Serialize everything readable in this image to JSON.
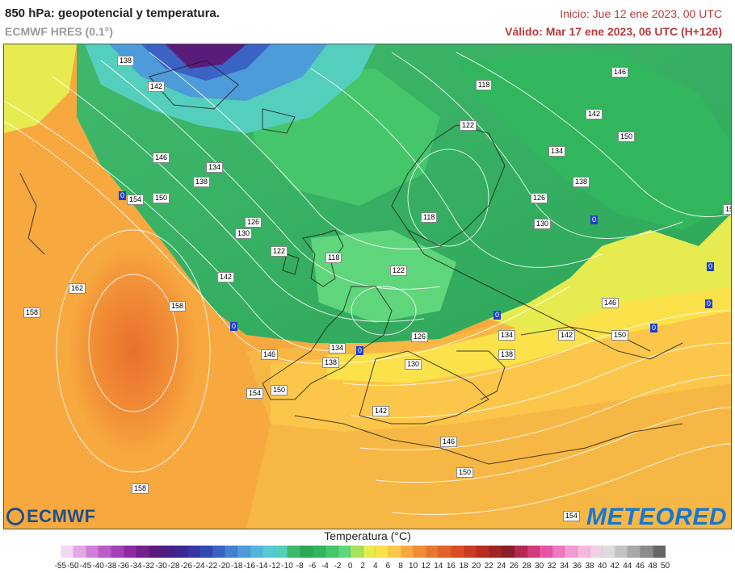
{
  "header": {
    "title": "850 hPa: geopotencial y temperatura.",
    "model": "ECMWF HRES (0.1°)",
    "init": "Inicio: Jue 12 ene 2023, 00 UTC",
    "valid": "Válido: Mar 17 ene 2023, 06 UTC (H+126)"
  },
  "logos": {
    "left": "ECMWF",
    "right": "METEORED"
  },
  "colorbar": {
    "title": "Temperatura (°C)",
    "ticks": [
      "-55",
      "-50",
      "-45",
      "-40",
      "-38",
      "-36",
      "-34",
      "-32",
      "-30",
      "-28",
      "-26",
      "-24",
      "-22",
      "-20",
      "-18",
      "-16",
      "-14",
      "-12",
      "-10",
      "-8",
      "-6",
      "-4",
      "-2",
      "0",
      "2",
      "4",
      "6",
      "8",
      "10",
      "12",
      "14",
      "16",
      "18",
      "20",
      "22",
      "24",
      "26",
      "28",
      "30",
      "32",
      "34",
      "36",
      "38",
      "40",
      "42",
      "44",
      "46",
      "48",
      "50"
    ],
    "colors": [
      "#ffffff",
      "#f3d6f3",
      "#e2a8e6",
      "#cf7fd8",
      "#bb5bc9",
      "#a43fb8",
      "#8b2aa3",
      "#72208e",
      "#5a1c7a",
      "#4a1f84",
      "#3a2894",
      "#3436a4",
      "#3348b4",
      "#3a63c4",
      "#4480d0",
      "#4d9bd8",
      "#53b4dc",
      "#57c8d6",
      "#55cfbd",
      "#3fb86a",
      "#2da65a",
      "#31b65d",
      "#46c66a",
      "#5fd67c",
      "#a6e25a",
      "#e6ec50",
      "#fbe14a",
      "#fcc64a",
      "#f7a83f",
      "#f18d36",
      "#ea7530",
      "#e3602a",
      "#da4c25",
      "#cc3a22",
      "#b82b22",
      "#a02424",
      "#8a1f2a",
      "#b42754",
      "#d23a7e",
      "#e456a4",
      "#ee78c0",
      "#f39bd2",
      "#f5b8de",
      "#f1cfe4",
      "#dcdcdc",
      "#c2c2c2",
      "#a8a8a8",
      "#8a8a8a",
      "#666666"
    ]
  },
  "contour_labels": [
    "138",
    "142",
    "146",
    "118",
    "122",
    "134",
    "150",
    "154",
    "126",
    "130",
    "162",
    "158",
    "114"
  ],
  "zero_label": "0"
}
